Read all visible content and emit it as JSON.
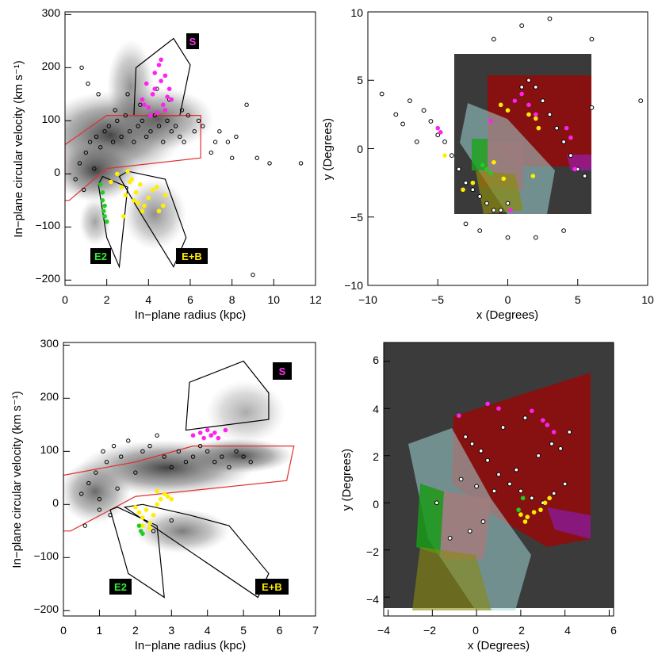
{
  "panels": [
    {
      "id": "top-left",
      "xlabel": "In−plane radius (kpc)",
      "ylabel": "In−plane circular velocity (km s⁻¹)",
      "xticks": [
        "0",
        "2",
        "4",
        "6",
        "8",
        "10",
        "12"
      ],
      "yticks": [
        "300",
        "200",
        "100",
        "0",
        "−100",
        "−200"
      ],
      "labels": {
        "S": "S",
        "E2": "E2",
        "EB": "E+B"
      }
    },
    {
      "id": "top-right",
      "xlabel": "x (Degrees)",
      "ylabel": "y (Degrees)",
      "xticks": [
        "−10",
        "−5",
        "0",
        "5",
        "10"
      ],
      "yticks": [
        "10",
        "5",
        "0",
        "−5",
        "−10"
      ]
    },
    {
      "id": "bottom-left",
      "xlabel": "In−plane radius (kpc)",
      "ylabel": "In−plane circular velocity (km s⁻¹)",
      "xticks": [
        "0",
        "1",
        "2",
        "3",
        "4",
        "5",
        "6",
        "7"
      ],
      "yticks": [
        "300",
        "200",
        "100",
        "0",
        "−100",
        "−200"
      ],
      "labels": {
        "S": "S",
        "E2": "E2",
        "EB": "E+B"
      }
    },
    {
      "id": "bottom-right",
      "xlabel": "x (Degrees)",
      "ylabel": "y (Degrees)",
      "xticks": [
        "−4",
        "−2",
        "0",
        "2",
        "4",
        "6"
      ],
      "yticks": [
        "6",
        "4",
        "2",
        "0",
        "−2",
        "−4"
      ]
    }
  ],
  "chart_data": [
    {
      "type": "scatter",
      "title": "",
      "xlabel": "In−plane radius (kpc)",
      "ylabel": "In−plane circular velocity (km s⁻¹)",
      "xlim": [
        0,
        12
      ],
      "ylim": [
        -210,
        305
      ],
      "regions": [
        {
          "name": "S",
          "color": "#000000",
          "polygon": [
            [
              3.3,
              110
            ],
            [
              3.4,
              200
            ],
            [
              5.2,
              255
            ],
            [
              6.0,
              205
            ],
            [
              5.5,
              110
            ]
          ]
        },
        {
          "name": "disk",
          "color": "#e03030",
          "polygon": [
            [
              0,
              55
            ],
            [
              2.0,
              110
            ],
            [
              6.5,
              110
            ],
            [
              6.5,
              30
            ],
            [
              2.0,
              10
            ],
            [
              0.2,
              -50
            ],
            [
              0,
              -50
            ]
          ]
        },
        {
          "name": "E2",
          "color": "#000000",
          "polygon": [
            [
              1.6,
              -20
            ],
            [
              1.8,
              -5
            ],
            [
              3.0,
              -25
            ],
            [
              2.6,
              -175
            ],
            [
              2.0,
              -120
            ]
          ]
        },
        {
          "name": "E+B",
          "color": "#000000",
          "polygon": [
            [
              2.6,
              -5
            ],
            [
              3.0,
              5
            ],
            [
              4.8,
              -10
            ],
            [
              5.8,
              -120
            ],
            [
              5.2,
              -175
            ],
            [
              3.4,
              -60
            ]
          ]
        }
      ],
      "series": [
        {
          "name": "S stars",
          "color": "#ff22ee",
          "x": [
            3.7,
            3.9,
            4.0,
            4.2,
            4.3,
            4.5,
            4.6,
            4.7,
            4.8,
            4.9,
            5.0,
            4.1,
            4.4,
            3.8,
            4.6,
            5.1,
            4.3,
            4.8
          ],
          "y": [
            140,
            170,
            125,
            150,
            190,
            205,
            175,
            130,
            120,
            145,
            160,
            110,
            115,
            130,
            215,
            140,
            160,
            185
          ]
        },
        {
          "name": "E+B stars",
          "color": "#ffee00",
          "x": [
            2.2,
            2.5,
            2.7,
            2.9,
            3.0,
            3.2,
            3.4,
            3.5,
            3.6,
            3.8,
            4.0,
            4.2,
            4.5,
            4.7,
            4.8,
            2.8,
            3.1,
            3.3,
            3.7,
            4.4
          ],
          "y": [
            -15,
            0,
            -25,
            -40,
            5,
            -10,
            -35,
            -55,
            -20,
            -60,
            -45,
            -30,
            -70,
            -60,
            -40,
            -80,
            -15,
            -50,
            -70,
            -25
          ]
        },
        {
          "name": "E2 stars",
          "color": "#22cc22",
          "x": [
            1.7,
            1.8,
            1.8,
            1.9,
            1.9,
            2.0,
            1.85
          ],
          "y": [
            -20,
            -35,
            -50,
            -60,
            -80,
            -90,
            -70
          ]
        },
        {
          "name": "stars (circles)",
          "color": "#000000",
          "x": [
            0.5,
            0.7,
            0.9,
            1.0,
            1.2,
            1.4,
            1.5,
            1.7,
            1.9,
            2.1,
            2.3,
            2.5,
            2.7,
            2.9,
            3.1,
            3.3,
            3.5,
            3.7,
            3.9,
            4.1,
            4.3,
            4.5,
            4.7,
            4.9,
            5.1,
            5.3,
            5.5,
            5.7,
            5.9,
            6.2,
            6.6,
            7.0,
            7.4,
            7.8,
            8.2,
            8.7,
            9.2,
            9.8,
            11.3,
            0.8,
            1.1,
            1.6,
            2.4,
            3.0,
            3.6,
            4.4,
            5.0,
            5.6,
            6.4,
            7.2,
            8.0,
            9.0
          ],
          "y": [
            -10,
            20,
            -30,
            40,
            60,
            10,
            70,
            50,
            80,
            90,
            60,
            100,
            70,
            110,
            80,
            60,
            90,
            100,
            70,
            80,
            110,
            90,
            60,
            100,
            80,
            90,
            70,
            60,
            110,
            80,
            90,
            40,
            80,
            60,
            70,
            130,
            30,
            20,
            20,
            200,
            170,
            150,
            120,
            150,
            130,
            160,
            140,
            120,
            100,
            60,
            30,
            -190
          ]
        }
      ]
    },
    {
      "type": "scatter",
      "title": "",
      "xlabel": "x (Degrees)",
      "ylabel": "y (Degrees)",
      "xlim": [
        -10,
        10
      ],
      "ylim": [
        -10,
        10
      ],
      "series": [
        {
          "name": "S stars",
          "color": "#ff22ee",
          "x": [
            0.5,
            1.0,
            1.5,
            2.0,
            4.2,
            4.5,
            4.8,
            -4.8,
            -5.0,
            -1.2,
            0.2
          ],
          "y": [
            3.5,
            4.0,
            3.2,
            2.5,
            1.5,
            0.8,
            -1.5,
            1.2,
            1.5,
            2.0,
            -4.5
          ]
        },
        {
          "name": "E+B stars",
          "color": "#ffee00",
          "x": [
            -0.5,
            0.0,
            1.5,
            2.0,
            2.2,
            -1.0,
            -2.5,
            -3.2,
            -4.5,
            1.8,
            -0.3
          ],
          "y": [
            3.2,
            2.8,
            2.5,
            2.2,
            1.5,
            -1.0,
            -2.5,
            -3.0,
            -0.5,
            -2.0,
            -2.2
          ]
        },
        {
          "name": "E2 stars",
          "color": "#22cc22",
          "x": [
            -1.5,
            -1.2,
            -1.8
          ],
          "y": [
            -1.5,
            -1.8,
            -1.2
          ]
        },
        {
          "name": "stars (circles)",
          "color": "#000000",
          "x": [
            -9,
            -7,
            -6,
            -5.5,
            -5,
            -4.5,
            -4,
            -3.5,
            -3,
            -2.5,
            -2,
            -1.5,
            -1,
            -0.5,
            0,
            0.5,
            1,
            1.5,
            2,
            2.5,
            3,
            3.5,
            4,
            4.5,
            5,
            5.5,
            -8,
            -7.5,
            -6.5,
            -3,
            -2,
            0,
            2,
            4,
            6,
            -1,
            1,
            3,
            9.5,
            6.0
          ],
          "y": [
            4,
            3.5,
            2.8,
            2.0,
            1.0,
            0.5,
            -0.5,
            -1.5,
            -2.5,
            -3.0,
            -3.5,
            -4.0,
            -4.5,
            -4.5,
            -4.0,
            3.5,
            4.5,
            5.0,
            4.5,
            3.5,
            2.5,
            1.5,
            0.5,
            -0.5,
            -1.5,
            -2.0,
            2.5,
            1.8,
            0.5,
            -5.5,
            -6.0,
            -6.5,
            -6.5,
            -6.0,
            3.0,
            8.0,
            9.0,
            9.5,
            3.5,
            8.0
          ]
        }
      ]
    },
    {
      "type": "scatter",
      "title": "",
      "xlabel": "In−plane radius (kpc)",
      "ylabel": "In−plane circular velocity (km s⁻¹)",
      "xlim": [
        0,
        7
      ],
      "ylim": [
        -210,
        305
      ],
      "regions": [
        {
          "name": "S",
          "color": "#000000",
          "polygon": [
            [
              3.4,
              140
            ],
            [
              3.5,
              230
            ],
            [
              5.0,
              270
            ],
            [
              5.7,
              210
            ],
            [
              5.7,
              160
            ]
          ]
        },
        {
          "name": "disk",
          "color": "#e03030",
          "polygon": [
            [
              0,
              55
            ],
            [
              2.0,
              80
            ],
            [
              3.6,
              110
            ],
            [
              6.4,
              110
            ],
            [
              6.2,
              45
            ],
            [
              2.0,
              15
            ],
            [
              0.2,
              -50
            ],
            [
              0,
              -50
            ]
          ]
        },
        {
          "name": "E2",
          "color": "#000000",
          "polygon": [
            [
              1.3,
              -10
            ],
            [
              1.5,
              -5
            ],
            [
              2.6,
              -40
            ],
            [
              2.8,
              -175
            ],
            [
              1.8,
              -130
            ]
          ]
        },
        {
          "name": "E+B",
          "color": "#000000",
          "polygon": [
            [
              1.7,
              -5
            ],
            [
              2.2,
              0
            ],
            [
              3.5,
              -20
            ],
            [
              4.6,
              -40
            ],
            [
              5.7,
              -130
            ],
            [
              5.4,
              -175
            ]
          ]
        }
      ],
      "series": [
        {
          "name": "S stars",
          "color": "#ff22ee",
          "x": [
            3.6,
            3.8,
            3.9,
            4.0,
            4.1,
            4.2,
            4.3,
            4.5
          ],
          "y": [
            130,
            135,
            125,
            140,
            130,
            135,
            125,
            140
          ]
        },
        {
          "name": "E+B stars",
          "color": "#ffee00",
          "x": [
            2.0,
            2.1,
            2.2,
            2.3,
            2.4,
            2.5,
            2.6,
            2.7,
            2.8,
            2.9,
            3.0,
            2.2,
            2.4,
            2.6
          ],
          "y": [
            -5,
            -15,
            -25,
            -10,
            -35,
            -20,
            0,
            10,
            20,
            15,
            10,
            -40,
            -45,
            25
          ]
        },
        {
          "name": "E2 stars",
          "color": "#22cc22",
          "x": [
            2.1,
            2.2,
            2.15
          ],
          "y": [
            -40,
            -55,
            -50
          ]
        },
        {
          "name": "stars (circles)",
          "color": "#000000",
          "x": [
            0.5,
            0.7,
            0.9,
            1.0,
            1.1,
            1.2,
            1.3,
            1.4,
            1.6,
            1.8,
            2.0,
            2.2,
            2.4,
            2.6,
            2.8,
            3.0,
            3.2,
            3.4,
            3.6,
            3.8,
            4.0,
            4.2,
            4.4,
            4.6,
            4.8,
            5.0,
            5.2,
            0.6,
            1.0,
            1.5,
            2.5,
            3.0
          ],
          "y": [
            20,
            40,
            60,
            10,
            100,
            80,
            -20,
            110,
            90,
            120,
            60,
            100,
            110,
            130,
            90,
            70,
            100,
            80,
            90,
            110,
            100,
            80,
            90,
            70,
            100,
            90,
            80,
            -40,
            -10,
            30,
            -50,
            -30
          ]
        }
      ]
    },
    {
      "type": "scatter",
      "title": "",
      "xlabel": "x (Degrees)",
      "ylabel": "y (Degrees)",
      "xlim": [
        -4.2,
        6.2
      ],
      "ylim": [
        -4.8,
        6.8
      ],
      "series": [
        {
          "name": "S stars",
          "color": "#ff22ee",
          "x": [
            -0.8,
            1.0,
            2.5,
            3.0,
            3.2,
            3.5,
            0.5
          ],
          "y": [
            3.7,
            4.0,
            3.9,
            3.5,
            3.3,
            3.0,
            4.2
          ]
        },
        {
          "name": "E+B stars",
          "color": "#ffee00",
          "x": [
            2.0,
            2.3,
            2.6,
            2.9,
            3.1,
            3.3,
            2.2
          ],
          "y": [
            -0.5,
            -0.6,
            -0.4,
            -0.3,
            0.0,
            0.2,
            -0.8
          ]
        },
        {
          "name": "E2 stars",
          "color": "#22cc22",
          "x": [
            1.9,
            2.1
          ],
          "y": [
            -0.3,
            0.2
          ]
        },
        {
          "name": "stars (circles)",
          "color": "#000000",
          "x": [
            -0.5,
            -0.2,
            0.2,
            0.5,
            1.0,
            1.5,
            2.0,
            2.5,
            3.0,
            3.5,
            4.0,
            -0.7,
            0.0,
            0.8,
            1.8,
            2.8,
            3.8,
            4.2,
            -1.8,
            -1.2,
            -0.3,
            0.3,
            1.2,
            2.2,
            3.4
          ],
          "y": [
            2.8,
            2.5,
            2.2,
            1.8,
            1.2,
            0.8,
            0.5,
            0.2,
            0.0,
            0.4,
            0.8,
            1.0,
            0.7,
            0.5,
            1.4,
            2.0,
            2.3,
            3.0,
            0.0,
            -1.5,
            -1.2,
            -0.8,
            3.2,
            3.6,
            2.5
          ]
        }
      ]
    }
  ]
}
